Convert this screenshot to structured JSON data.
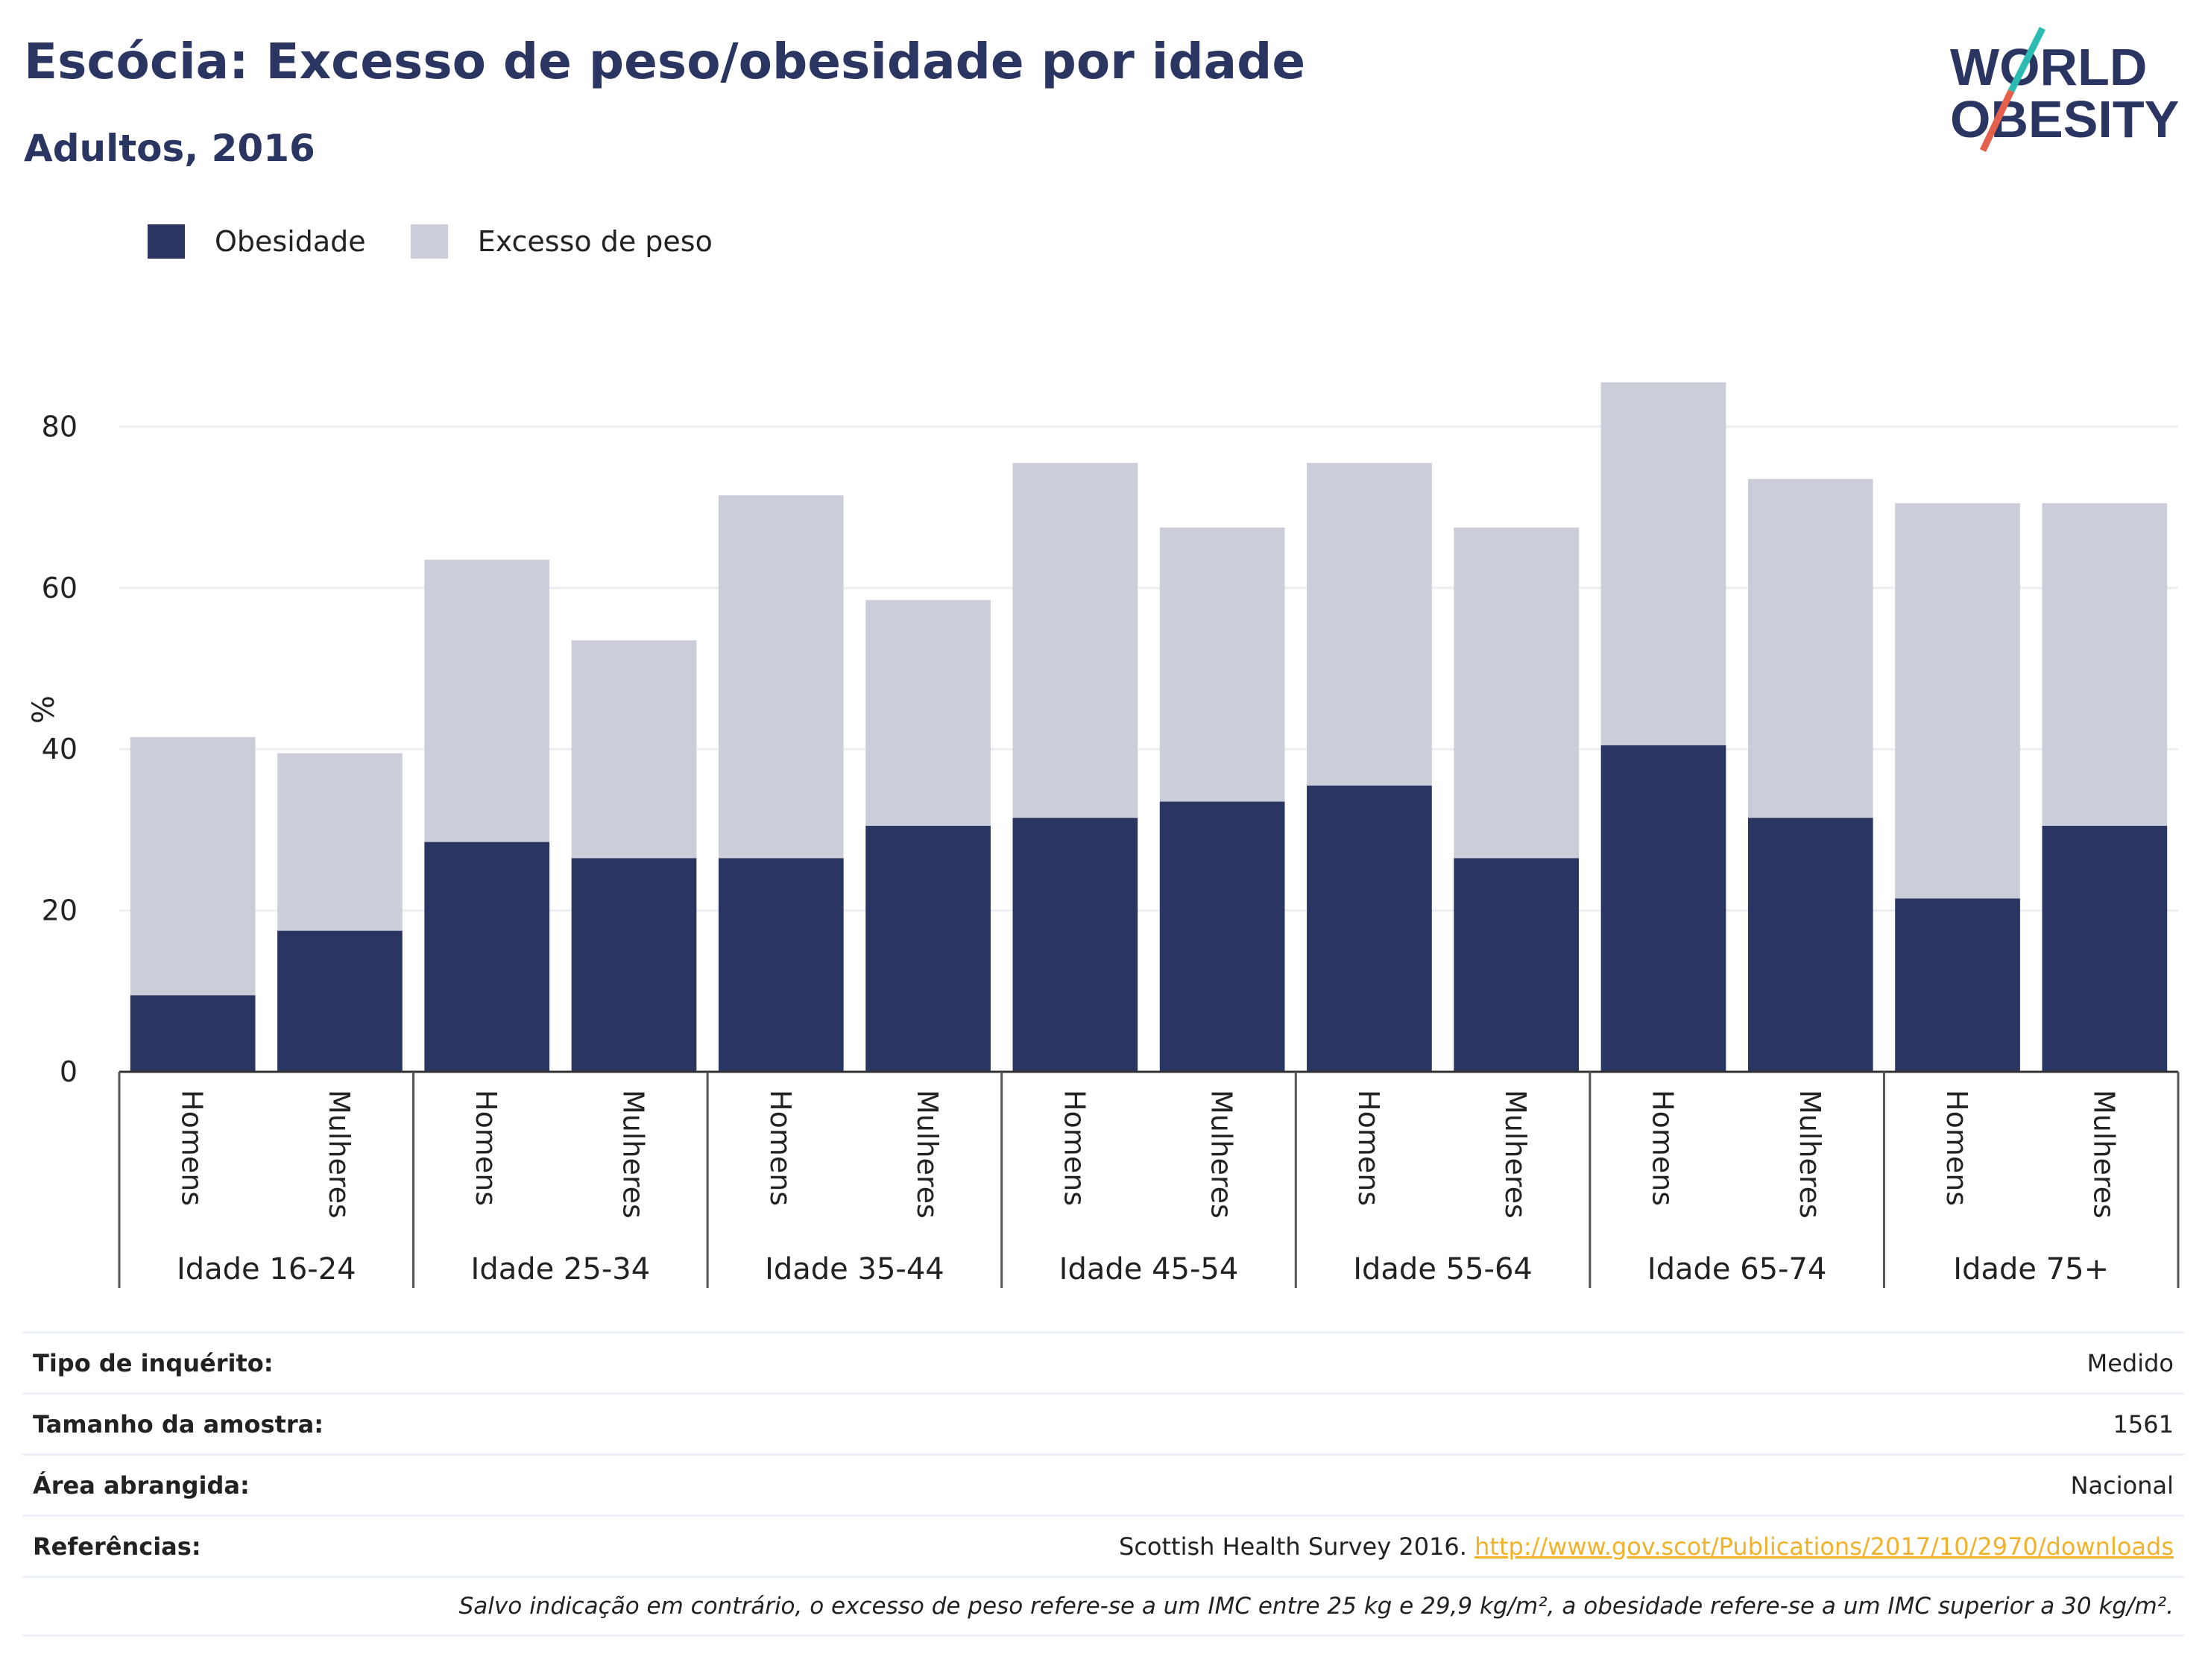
{
  "header": {
    "title": "Escócia: Excesso de peso/obesidade por idade",
    "subtitle": "Adultos, 2016"
  },
  "logo": {
    "line1": "WORLD",
    "line2": "OBESITY",
    "accent_teal": "#2bbbb2",
    "accent_red": "#e4604d"
  },
  "legend": [
    {
      "label": "Obesidade",
      "color": "#2a3562"
    },
    {
      "label": "Excesso de peso",
      "color": "#cbcdd8"
    }
  ],
  "chart_data": {
    "type": "bar",
    "stacked": true,
    "ylabel": "%",
    "ylim": [
      0,
      90
    ],
    "yticks": [
      0,
      20,
      40,
      60,
      80
    ],
    "grid": true,
    "legend_position": "top-left",
    "groups": [
      "Idade 16-24",
      "Idade 25-34",
      "Idade 35-44",
      "Idade 45-54",
      "Idade 55-64",
      "Idade 65-74",
      "Idade 75+"
    ],
    "subcategories": [
      "Homens",
      "Mulheres"
    ],
    "series": [
      {
        "name": "Obesidade",
        "color": "#2a3562",
        "values": [
          9.5,
          17.5,
          28.5,
          26.5,
          26.5,
          30.5,
          31.5,
          33.5,
          35.5,
          26.5,
          40.5,
          31.5,
          21.5,
          30.5
        ]
      },
      {
        "name": "Excesso de peso",
        "color": "#cbcdd8",
        "values": [
          32,
          22,
          35,
          27,
          45,
          28,
          44,
          34,
          40,
          41,
          45,
          42,
          49,
          40
        ]
      }
    ]
  },
  "info": {
    "survey_type": {
      "label": "Tipo de inquérito:",
      "value": "Medido"
    },
    "sample_size": {
      "label": "Tamanho da amostra:",
      "value": "1561"
    },
    "area": {
      "label": "Área abrangida:",
      "value": "Nacional"
    },
    "references": {
      "label": "Referências:",
      "text": "Scottish Health Survey 2016. ",
      "link": "http://www.gov.scot/Publications/2017/10/2970/downloads"
    },
    "note": "Salvo indicação em contrário, o excesso de peso refere-se a um IMC entre 25 kg e 29,9 kg/m², a obesidade refere-se a um IMC superior a 30 kg/m²."
  }
}
